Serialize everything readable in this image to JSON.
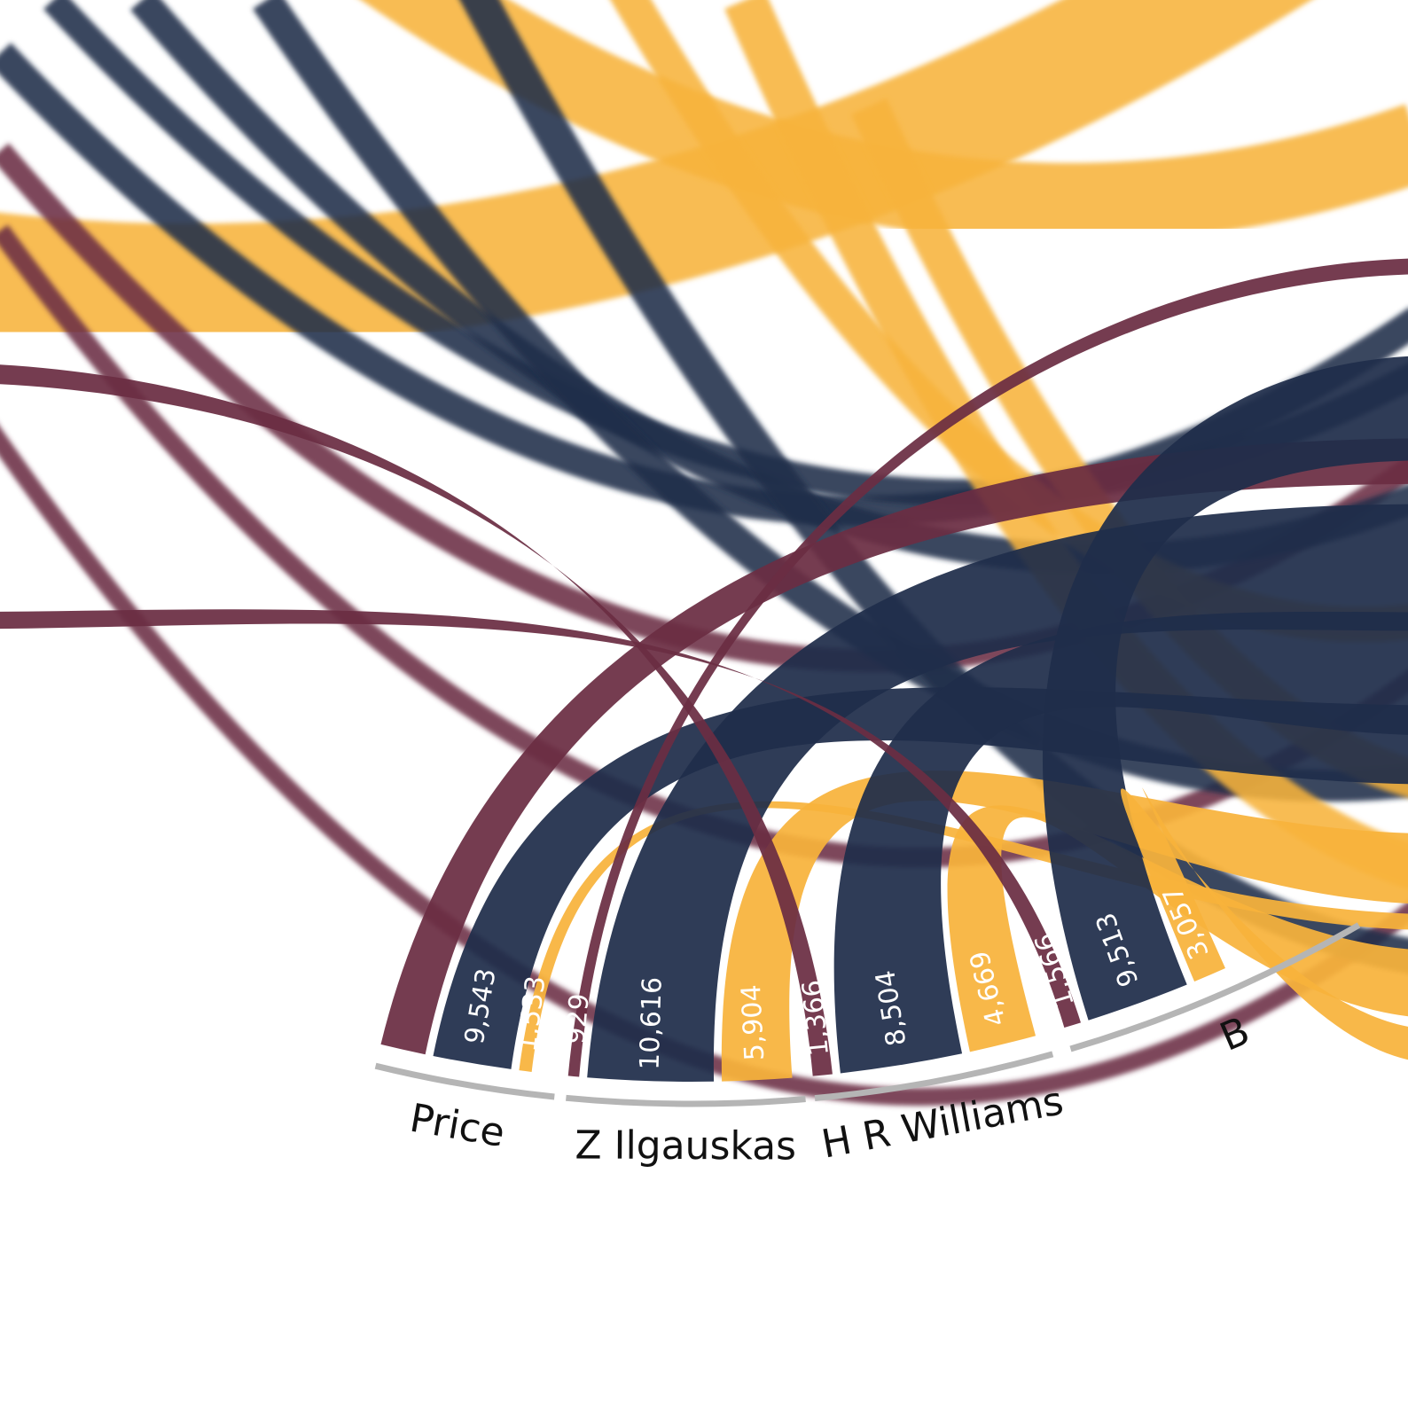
{
  "colors": {
    "maroon": "#6b2d43",
    "navy": "#1f2d4a",
    "gold": "#f7b33b",
    "arc": "#b5b5b5",
    "text": "#111111",
    "value_text": "#ffffff"
  },
  "chart_data": {
    "type": "chord",
    "title": "",
    "series_colors": [
      "maroon",
      "navy",
      "gold"
    ],
    "players": [
      {
        "name": "Price",
        "label": "Price",
        "ribbons": [
          {
            "value": null,
            "label": "",
            "color": "maroon"
          },
          {
            "value": 9543,
            "label": "9,543",
            "color": "navy"
          },
          {
            "value": 1533,
            "label": "1,533",
            "color": "gold"
          }
        ]
      },
      {
        "name": "Z Ilgauskas",
        "label": "Z Ilgauskas",
        "ribbons": [
          {
            "value": 929,
            "label": "929",
            "color": "maroon"
          },
          {
            "value": 10616,
            "label": "10,616",
            "color": "navy"
          },
          {
            "value": 5904,
            "label": "5,904",
            "color": "gold"
          }
        ]
      },
      {
        "name": "H R Williams",
        "label": "H R Williams",
        "ribbons": [
          {
            "value": 1366,
            "label": "1,366",
            "color": "maroon"
          },
          {
            "value": 8504,
            "label": "8,504",
            "color": "navy"
          },
          {
            "value": 4669,
            "label": "4,669",
            "color": "gold"
          }
        ]
      },
      {
        "name": "B",
        "label": "B",
        "ribbons": [
          {
            "value": 1566,
            "label": "1,566",
            "color": "maroon"
          },
          {
            "value": 9513,
            "label": "9,513",
            "color": "navy"
          },
          {
            "value": 3057,
            "label": "3,057",
            "color": "gold"
          }
        ]
      }
    ]
  }
}
